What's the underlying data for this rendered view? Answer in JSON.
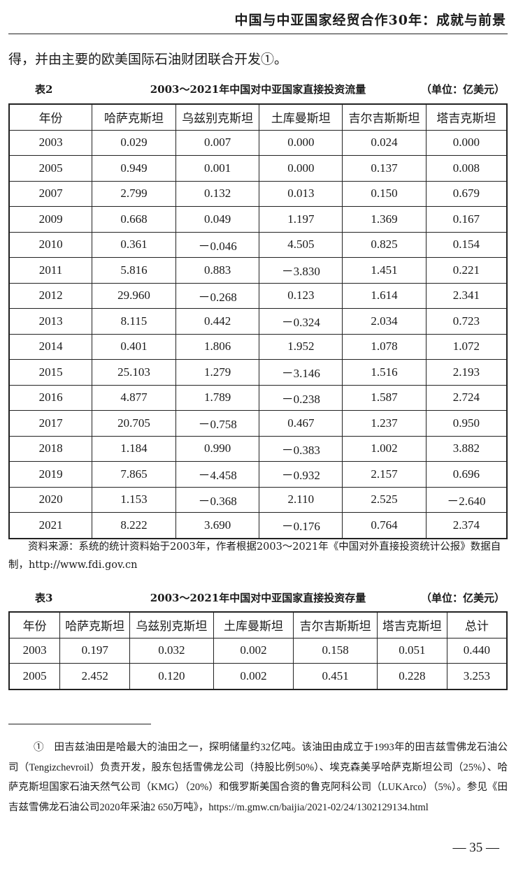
{
  "header": {
    "running_title": "中国与中亚国家经贸合作30年：成就与前景"
  },
  "body_text": "得，并由主要的欧美国际石油财团联合开发①。",
  "table2": {
    "number": "表2",
    "title": "2003～2021年中国对中亚国家直接投资流量",
    "unit": "（单位：亿美元）",
    "columns": [
      "年份",
      "哈萨克斯坦",
      "乌兹别克斯坦",
      "土库曼斯坦",
      "吉尔吉斯斯坦",
      "塔吉克斯坦"
    ],
    "rows": [
      [
        "2003",
        "0.029",
        "0.007",
        "0.000",
        "0.024",
        "0.000"
      ],
      [
        "2005",
        "0.949",
        "0.001",
        "0.000",
        "0.137",
        "0.008"
      ],
      [
        "2007",
        "2.799",
        "0.132",
        "0.013",
        "0.150",
        "0.679"
      ],
      [
        "2009",
        "0.668",
        "0.049",
        "1.197",
        "1.369",
        "0.167"
      ],
      [
        "2010",
        "0.361",
        "－0.046",
        "4.505",
        "0.825",
        "0.154"
      ],
      [
        "2011",
        "5.816",
        "0.883",
        "－3.830",
        "1.451",
        "0.221"
      ],
      [
        "2012",
        "29.960",
        "－0.268",
        "0.123",
        "1.614",
        "2.341"
      ],
      [
        "2013",
        "8.115",
        "0.442",
        "－0.324",
        "2.034",
        "0.723"
      ],
      [
        "2014",
        "0.401",
        "1.806",
        "1.952",
        "1.078",
        "1.072"
      ],
      [
        "2015",
        "25.103",
        "1.279",
        "－3.146",
        "1.516",
        "2.193"
      ],
      [
        "2016",
        "4.877",
        "1.789",
        "－0.238",
        "1.587",
        "2.724"
      ],
      [
        "2017",
        "20.705",
        "－0.758",
        "0.467",
        "1.237",
        "0.950"
      ],
      [
        "2018",
        "1.184",
        "0.990",
        "－0.383",
        "1.002",
        "3.882"
      ],
      [
        "2019",
        "7.865",
        "－4.458",
        "－0.932",
        "2.157",
        "0.696"
      ],
      [
        "2020",
        "1.153",
        "－0.368",
        "2.110",
        "2.525",
        "－2.640"
      ],
      [
        "2021",
        "8.222",
        "3.690",
        "－0.176",
        "0.764",
        "2.374"
      ]
    ],
    "source": "资料来源：系统的统计资料始于2003年，作者根据2003～2021年《中国对外直接投资统计公报》数据自制，http://www.fdi.gov.cn"
  },
  "table3": {
    "number": "表3",
    "title": "2003～2021年中国对中亚国家直接投资存量",
    "unit": "（单位：亿美元）",
    "columns": [
      "年份",
      "哈萨克斯坦",
      "乌兹别克斯坦",
      "土库曼斯坦",
      "吉尔吉斯斯坦",
      "塔吉克斯坦",
      "总计"
    ],
    "rows": [
      [
        "2003",
        "0.197",
        "0.032",
        "0.002",
        "0.158",
        "0.051",
        "0.440"
      ],
      [
        "2005",
        "2.452",
        "0.120",
        "0.002",
        "0.451",
        "0.228",
        "3.253"
      ]
    ]
  },
  "footnote": "①　田吉兹油田是哈最大的油田之一，探明储量约32亿吨。该油田由成立于1993年的田吉兹雪佛龙石油公司（Tengizchevroil）负责开发，股东包括雪佛龙公司（持股比例50%）、埃克森美孚哈萨克斯坦公司（25%）、哈萨克斯坦国家石油天然气公司（KMG）（20%）和俄罗斯美国合资的鲁克阿科公司（LUKArco）（5%）。参见《田吉兹雪佛龙石油公司2020年采油2 650万吨》，https://m.gmw.cn/baijia/2021-02/24/1302129134.html",
  "page_number": "— 35 —"
}
